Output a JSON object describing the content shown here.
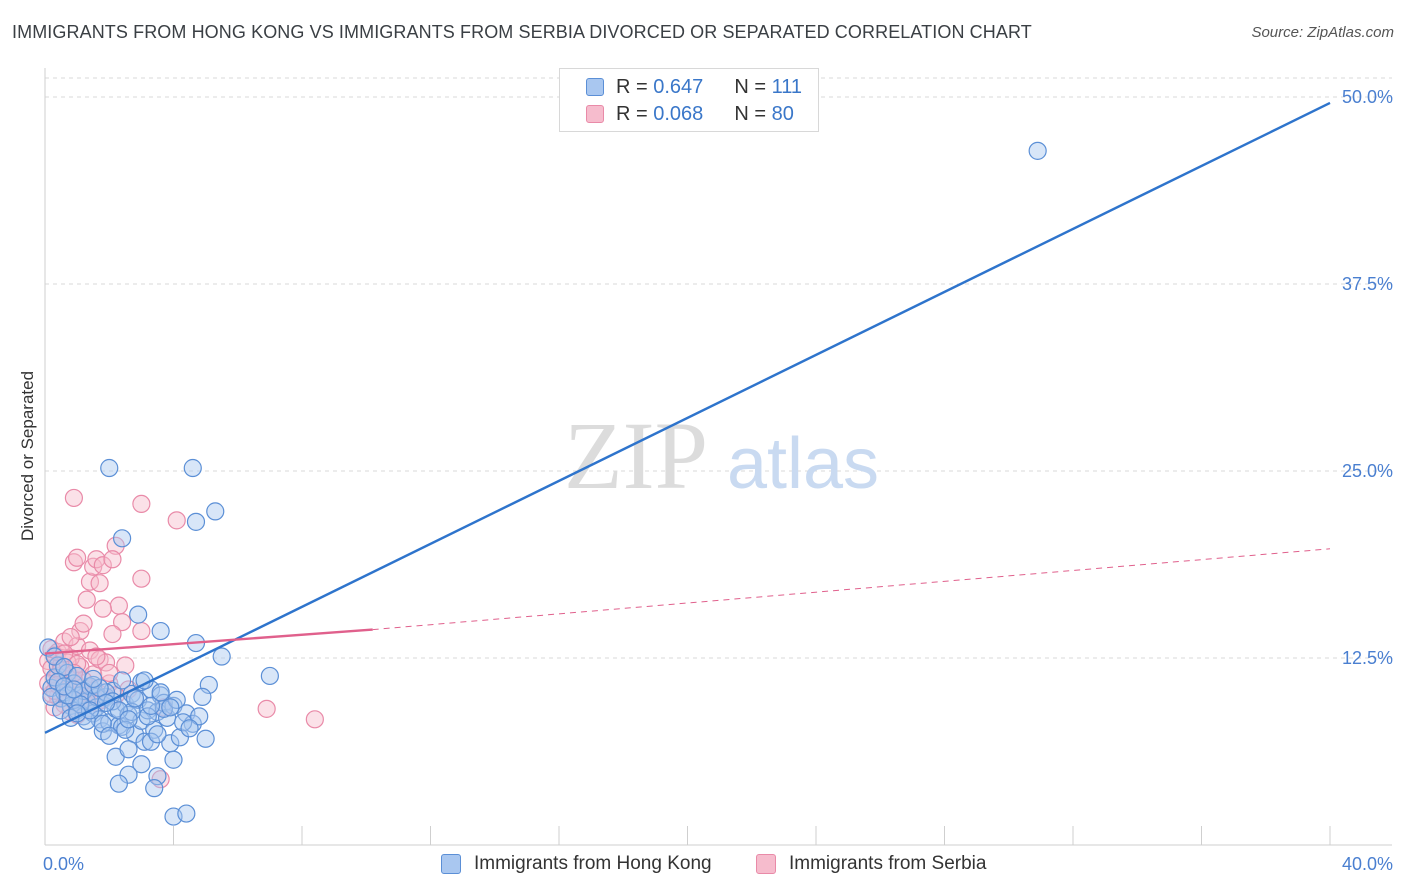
{
  "title": "IMMIGRANTS FROM HONG KONG VS IMMIGRANTS FROM SERBIA DIVORCED OR SEPARATED CORRELATION CHART",
  "source": "Source: ZipAtlas.com",
  "watermark": {
    "zip": "ZIP",
    "atlas": "atlas"
  },
  "legend": {
    "r_label": "R =",
    "n_label": "N =",
    "rows": [
      {
        "r": "0.647",
        "n": "111"
      },
      {
        "r": "0.068",
        "n": "80"
      }
    ]
  },
  "colors": {
    "hk_fill": "#a9c7f0",
    "hk_stroke": "#5b8fd6",
    "hk_line": "#2e74cc",
    "rs_fill": "#f6bccd",
    "rs_stroke": "#e98aa8",
    "rs_line": "#e0608c",
    "grid": "#d9d9d9",
    "tick_text": "#4a7fd0"
  },
  "chart_data": {
    "type": "scatter",
    "title": "IMMIGRANTS FROM HONG KONG VS IMMIGRANTS FROM SERBIA DIVORCED OR SEPARATED CORRELATION CHART",
    "xlabel": "",
    "ylabel": "Divorced or Separated",
    "xlim": [
      0,
      40
    ],
    "ylim": [
      0,
      50
    ],
    "x_ticks": [
      {
        "v": 0,
        "label": "0.0%"
      },
      {
        "v": 40,
        "label": "40.0%"
      }
    ],
    "y_ticks": [
      {
        "v": 12.5,
        "label": "12.5%"
      },
      {
        "v": 25,
        "label": "25.0%"
      },
      {
        "v": 37.5,
        "label": "37.5%"
      },
      {
        "v": 50,
        "label": "50.0%"
      }
    ],
    "series": [
      {
        "name": "Immigrants from Hong Kong",
        "r": 0.647,
        "n": 111,
        "trend": {
          "x0": 0,
          "y0": 7.5,
          "x1": 40,
          "y1": 49.6
        },
        "points": [
          [
            0.2,
            10.5
          ],
          [
            0.3,
            11.2
          ],
          [
            0.4,
            12.0
          ],
          [
            0.5,
            9.8
          ],
          [
            0.6,
            10.2
          ],
          [
            0.7,
            11.5
          ],
          [
            0.8,
            9.3
          ],
          [
            0.9,
            10.8
          ],
          [
            1.0,
            9.0
          ],
          [
            1.1,
            10.0
          ],
          [
            1.2,
            8.6
          ],
          [
            1.3,
            9.6
          ],
          [
            1.4,
            10.6
          ],
          [
            1.5,
            8.8
          ],
          [
            1.6,
            9.2
          ],
          [
            1.7,
            8.4
          ],
          [
            1.8,
            7.6
          ],
          [
            1.9,
            9.9
          ],
          [
            2.0,
            8.2
          ],
          [
            2.1,
            10.3
          ],
          [
            2.2,
            9.1
          ],
          [
            2.3,
            8.0
          ],
          [
            2.4,
            7.9
          ],
          [
            2.5,
            9.4
          ],
          [
            2.6,
            8.7
          ],
          [
            2.7,
            10.1
          ],
          [
            2.8,
            7.4
          ],
          [
            2.9,
            9.7
          ],
          [
            3.0,
            8.3
          ],
          [
            3.1,
            6.9
          ],
          [
            3.2,
            9.0
          ],
          [
            3.3,
            10.4
          ],
          [
            3.4,
            7.7
          ],
          [
            3.5,
            8.9
          ],
          [
            3.6,
            10.0
          ],
          [
            3.7,
            9.5
          ],
          [
            3.8,
            8.5
          ],
          [
            3.9,
            6.8
          ],
          [
            4.0,
            9.3
          ],
          [
            4.2,
            7.2
          ],
          [
            4.4,
            8.8
          ],
          [
            4.6,
            8.1
          ],
          [
            4.8,
            8.6
          ],
          [
            5.0,
            7.1
          ],
          [
            1.2,
            10.3
          ],
          [
            1.6,
            9.9
          ],
          [
            2.4,
            11.0
          ],
          [
            3.0,
            10.9
          ],
          [
            0.5,
            9.0
          ],
          [
            0.8,
            8.5
          ],
          [
            2.2,
            5.9
          ],
          [
            2.0,
            25.2
          ],
          [
            4.6,
            25.2
          ],
          [
            2.4,
            20.5
          ],
          [
            4.7,
            21.6
          ],
          [
            5.3,
            22.3
          ],
          [
            2.9,
            15.4
          ],
          [
            3.6,
            14.3
          ],
          [
            4.7,
            13.5
          ],
          [
            5.5,
            12.6
          ],
          [
            7.0,
            11.3
          ],
          [
            3.1,
            11.0
          ],
          [
            5.1,
            10.7
          ],
          [
            2.6,
            6.4
          ],
          [
            3.3,
            6.9
          ],
          [
            3.0,
            5.4
          ],
          [
            3.5,
            4.6
          ],
          [
            2.6,
            4.7
          ],
          [
            2.3,
            4.1
          ],
          [
            3.4,
            3.8
          ],
          [
            4.0,
            5.7
          ],
          [
            4.0,
            1.9
          ],
          [
            4.4,
            2.1
          ],
          [
            3.5,
            7.4
          ],
          [
            0.1,
            13.2
          ],
          [
            0.3,
            12.6
          ],
          [
            0.6,
            11.9
          ],
          [
            1.0,
            11.3
          ],
          [
            1.5,
            10.7
          ],
          [
            1.9,
            10.2
          ],
          [
            0.9,
            9.7
          ],
          [
            1.3,
            8.3
          ],
          [
            1.8,
            8.1
          ],
          [
            2.5,
            7.7
          ],
          [
            3.2,
            8.6
          ],
          [
            3.7,
            9.1
          ],
          [
            4.1,
            9.7
          ],
          [
            4.3,
            8.2
          ],
          [
            0.4,
            10.9
          ],
          [
            0.7,
            10.0
          ],
          [
            1.1,
            9.4
          ],
          [
            1.4,
            9.0
          ],
          [
            1.7,
            10.5
          ],
          [
            2.1,
            9.6
          ],
          [
            2.7,
            8.9
          ],
          [
            3.9,
            9.2
          ],
          [
            4.5,
            7.8
          ],
          [
            2.0,
            7.3
          ],
          [
            2.8,
            9.8
          ],
          [
            3.3,
            9.3
          ],
          [
            1.0,
            8.8
          ],
          [
            0.2,
            9.9
          ],
          [
            0.6,
            10.6
          ],
          [
            1.5,
            11.1
          ],
          [
            2.3,
            9.0
          ],
          [
            3.6,
            10.2
          ],
          [
            4.9,
            9.9
          ],
          [
            0.9,
            10.4
          ],
          [
            1.9,
            9.5
          ],
          [
            2.6,
            8.4
          ],
          [
            30.9,
            46.4
          ]
        ]
      },
      {
        "name": "Immigrants from Serbia",
        "r": 0.068,
        "n": 80,
        "trend": {
          "x0": 0,
          "y0": 12.8,
          "x1": 10.2,
          "y1": 14.4
        },
        "trend_ext": {
          "x0": 10.2,
          "y0": 14.4,
          "x1": 40,
          "y1": 19.8
        },
        "points": [
          [
            0.1,
            12.3
          ],
          [
            0.2,
            11.8
          ],
          [
            0.3,
            12.7
          ],
          [
            0.4,
            11.3
          ],
          [
            0.5,
            12.0
          ],
          [
            0.6,
            10.9
          ],
          [
            0.7,
            11.6
          ],
          [
            0.8,
            10.4
          ],
          [
            0.9,
            11.1
          ],
          [
            1.0,
            10.7
          ],
          [
            1.1,
            11.9
          ],
          [
            1.2,
            10.2
          ],
          [
            1.3,
            9.8
          ],
          [
            1.4,
            10.5
          ],
          [
            1.5,
            11.4
          ],
          [
            1.6,
            9.5
          ],
          [
            1.7,
            10.1
          ],
          [
            0.2,
            13.1
          ],
          [
            0.4,
            12.9
          ],
          [
            0.6,
            13.6
          ],
          [
            0.8,
            12.5
          ],
          [
            1.0,
            13.3
          ],
          [
            1.1,
            14.3
          ],
          [
            1.2,
            14.8
          ],
          [
            1.3,
            16.4
          ],
          [
            1.4,
            17.6
          ],
          [
            1.5,
            18.6
          ],
          [
            1.6,
            19.1
          ],
          [
            1.7,
            17.5
          ],
          [
            1.8,
            18.7
          ],
          [
            0.9,
            18.9
          ],
          [
            1.0,
            19.2
          ],
          [
            0.9,
            23.2
          ],
          [
            3.0,
            22.8
          ],
          [
            4.1,
            21.7
          ],
          [
            2.2,
            20.0
          ],
          [
            2.1,
            19.1
          ],
          [
            3.0,
            17.8
          ],
          [
            2.3,
            16.0
          ],
          [
            1.8,
            15.8
          ],
          [
            2.4,
            14.9
          ],
          [
            2.1,
            14.1
          ],
          [
            3.0,
            14.3
          ],
          [
            1.4,
            13.0
          ],
          [
            1.7,
            12.4
          ],
          [
            1.9,
            12.2
          ],
          [
            2.5,
            12.0
          ],
          [
            0.3,
            11.1
          ],
          [
            0.5,
            10.6
          ],
          [
            0.7,
            10.0
          ],
          [
            0.9,
            9.6
          ],
          [
            1.1,
            9.3
          ],
          [
            1.3,
            9.1
          ],
          [
            0.4,
            9.9
          ],
          [
            0.6,
            9.4
          ],
          [
            0.8,
            8.9
          ],
          [
            1.0,
            8.7
          ],
          [
            0.3,
            9.2
          ],
          [
            2.0,
            10.8
          ],
          [
            2.6,
            10.4
          ],
          [
            3.7,
            9.2
          ],
          [
            6.9,
            9.1
          ],
          [
            8.4,
            8.4
          ],
          [
            3.6,
            4.4
          ],
          [
            0.2,
            10.1
          ],
          [
            0.5,
            11.7
          ],
          [
            0.7,
            12.2
          ],
          [
            1.2,
            11.0
          ],
          [
            1.5,
            10.0
          ],
          [
            1.8,
            9.7
          ],
          [
            0.1,
            10.8
          ],
          [
            0.3,
            10.3
          ],
          [
            0.6,
            12.8
          ],
          [
            0.8,
            13.9
          ],
          [
            1.0,
            12.1
          ],
          [
            1.6,
            12.6
          ],
          [
            2.0,
            11.5
          ],
          [
            2.2,
            10.0
          ],
          [
            0.4,
            10.7
          ],
          [
            0.9,
            11.5
          ]
        ]
      }
    ],
    "legend_position": "top-center",
    "grid": true
  }
}
